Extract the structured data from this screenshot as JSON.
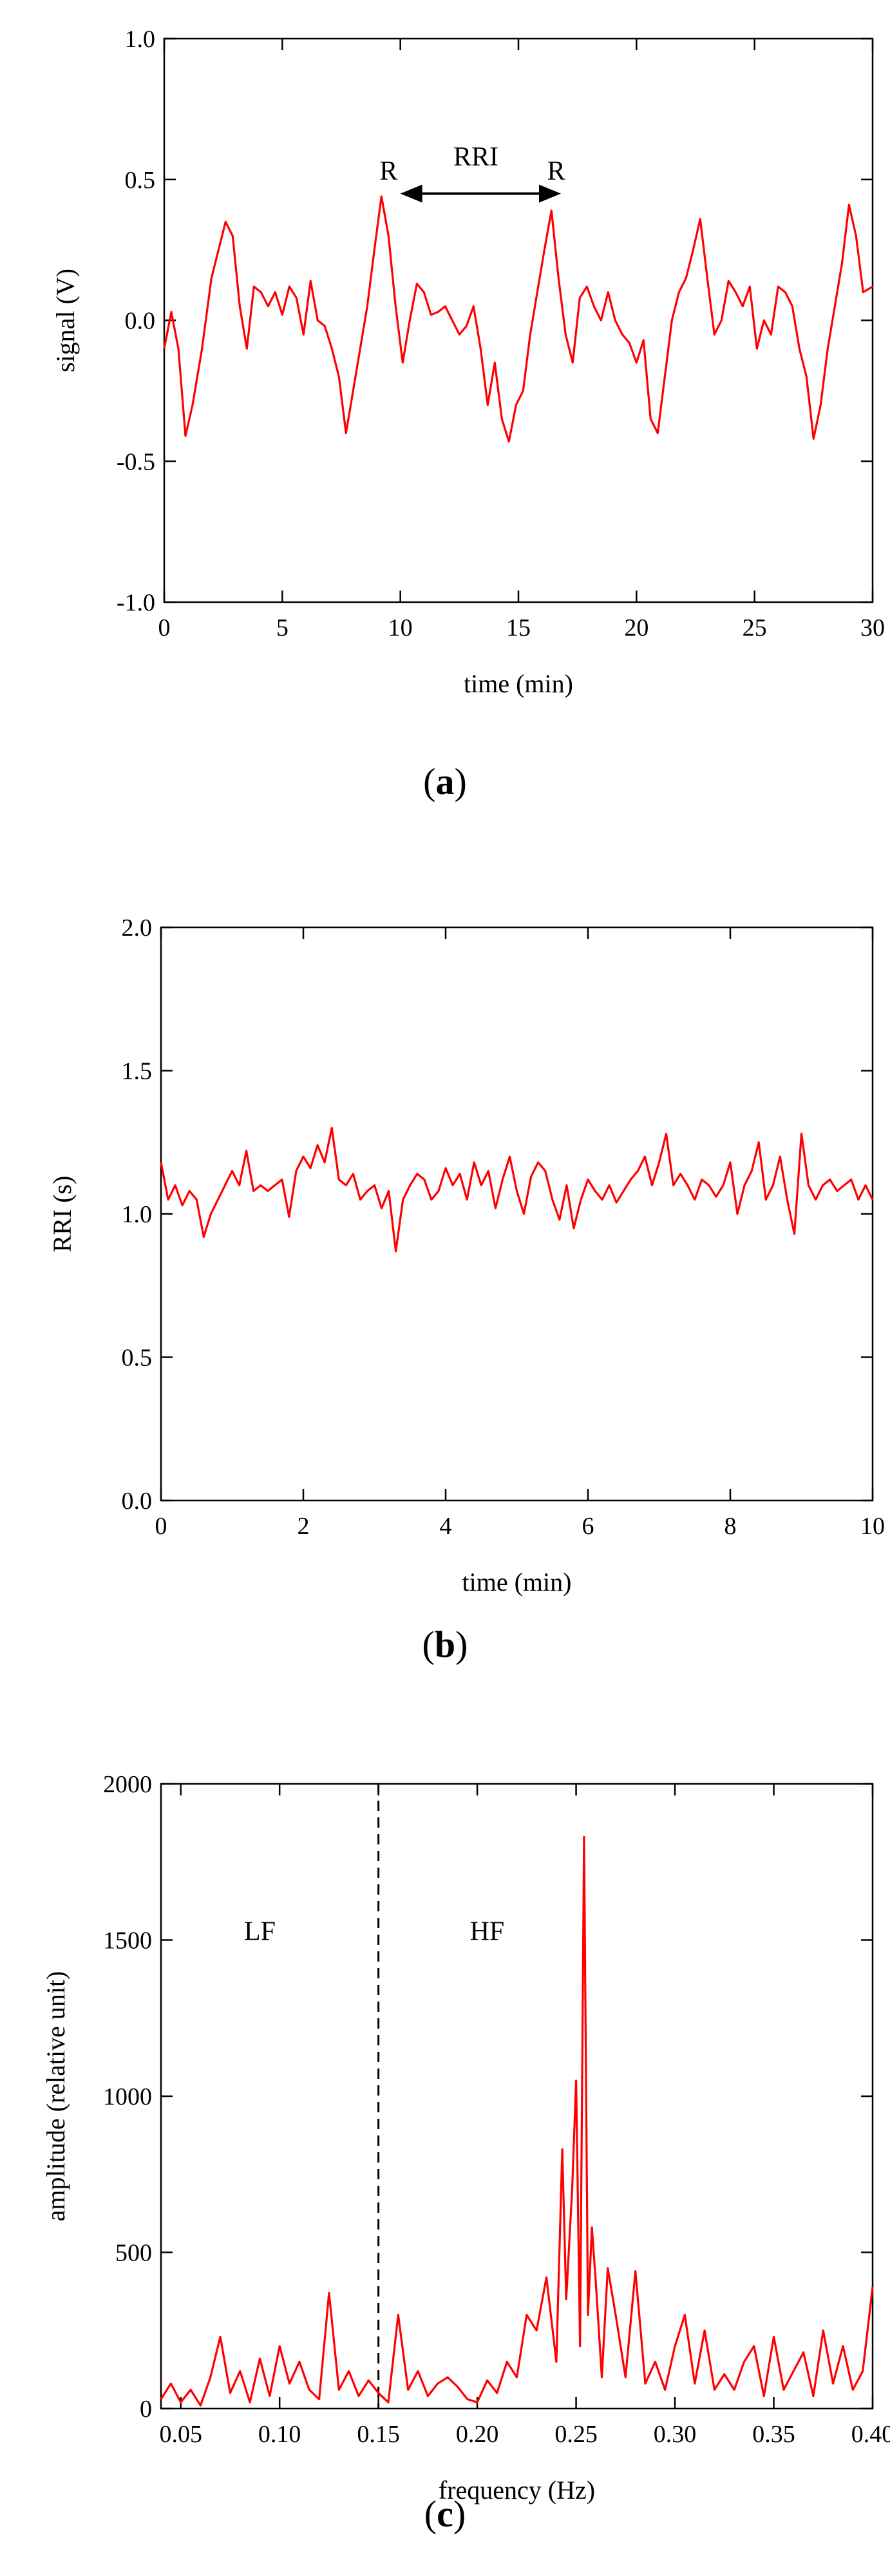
{
  "panels": {
    "a": {
      "caption_letter": "a"
    },
    "b": {
      "caption_letter": "b"
    },
    "c": {
      "caption_letter": "c"
    }
  },
  "chart_data": [
    {
      "id": "a",
      "type": "line",
      "xlabel": "time (min)",
      "ylabel": "signal (V)",
      "xlim": [
        0,
        30
      ],
      "ylim": [
        -1.0,
        1.0
      ],
      "xticks": [
        0,
        5,
        10,
        15,
        20,
        25,
        30
      ],
      "xtick_labels": [
        "0",
        "5",
        "10",
        "15",
        "20",
        "25",
        "30"
      ],
      "yticks": [
        -1.0,
        -0.5,
        0.0,
        0.5,
        1.0
      ],
      "ytick_labels": [
        "-1.0",
        "-0.5",
        "0.0",
        "0.5",
        "1.0"
      ],
      "line_color": "#ff0000",
      "annotations": [
        {
          "text": "R",
          "x": 9.5,
          "y": 0.5
        },
        {
          "text": "R",
          "x": 16.6,
          "y": 0.5
        },
        {
          "text": "RRI",
          "x": 13.2,
          "y": 0.55
        }
      ],
      "arrow": {
        "x_start": 10.0,
        "x_end": 16.8,
        "y": 0.45
      },
      "series": [
        {
          "x": [
            0,
            0.3,
            0.6,
            0.9,
            1.2,
            1.6,
            2.0,
            2.3,
            2.6,
            2.9,
            3.2,
            3.5,
            3.8,
            4.1,
            4.4,
            4.7,
            5.0,
            5.3,
            5.6,
            5.9,
            6.2,
            6.5,
            6.8,
            7.1,
            7.4,
            7.7,
            8.0,
            8.3,
            8.6,
            8.9,
            9.2,
            9.5,
            9.8,
            10.1,
            10.4,
            10.7,
            11.0,
            11.3,
            11.6,
            11.9,
            12.2,
            12.5,
            12.8,
            13.1,
            13.4,
            13.7,
            14.0,
            14.3,
            14.6,
            14.9,
            15.2,
            15.5,
            15.8,
            16.1,
            16.4,
            16.7,
            17.0,
            17.3,
            17.6,
            17.9,
            18.2,
            18.5,
            18.8,
            19.1,
            19.4,
            19.7,
            20.0,
            20.3,
            20.6,
            20.9,
            21.2,
            21.5,
            21.8,
            22.1,
            22.4,
            22.7,
            23.0,
            23.3,
            23.6,
            23.9,
            24.2,
            24.5,
            24.8,
            25.1,
            25.4,
            25.7,
            26.0,
            26.3,
            26.6,
            26.9,
            27.2,
            27.5,
            27.8,
            28.1,
            28.4,
            28.7,
            29.0,
            29.3,
            29.6,
            30.0
          ],
          "y": [
            -0.1,
            0.03,
            -0.1,
            -0.41,
            -0.3,
            -0.1,
            0.15,
            0.25,
            0.35,
            0.3,
            0.05,
            -0.1,
            0.12,
            0.1,
            0.05,
            0.1,
            0.02,
            0.12,
            0.08,
            -0.05,
            0.14,
            0.0,
            -0.02,
            -0.1,
            -0.2,
            -0.4,
            -0.25,
            -0.1,
            0.05,
            0.25,
            0.44,
            0.3,
            0.05,
            -0.15,
            0.0,
            0.13,
            0.1,
            0.02,
            0.03,
            0.05,
            0.0,
            -0.05,
            -0.02,
            0.05,
            -0.1,
            -0.3,
            -0.15,
            -0.35,
            -0.43,
            -0.3,
            -0.25,
            -0.05,
            0.1,
            0.25,
            0.39,
            0.15,
            -0.05,
            -0.15,
            0.08,
            0.12,
            0.05,
            0.0,
            0.1,
            0.0,
            -0.05,
            -0.08,
            -0.15,
            -0.07,
            -0.35,
            -0.4,
            -0.2,
            0.0,
            0.1,
            0.15,
            0.25,
            0.36,
            0.15,
            -0.05,
            0.0,
            0.14,
            0.1,
            0.05,
            0.12,
            -0.1,
            0.0,
            -0.05,
            0.12,
            0.1,
            0.05,
            -0.1,
            -0.2,
            -0.42,
            -0.3,
            -0.1,
            0.05,
            0.2,
            0.41,
            0.3,
            0.1,
            0.12
          ]
        }
      ]
    },
    {
      "id": "b",
      "type": "line",
      "xlabel": "time (min)",
      "ylabel": "RRI (s)",
      "xlim": [
        0,
        10
      ],
      "ylim": [
        0.0,
        2.0
      ],
      "xticks": [
        0,
        2,
        4,
        6,
        8,
        10
      ],
      "xtick_labels": [
        "0",
        "2",
        "4",
        "6",
        "8",
        "10"
      ],
      "yticks": [
        0.0,
        0.5,
        1.0,
        1.5,
        2.0
      ],
      "ytick_labels": [
        "0.0",
        "0.5",
        "1.0",
        "1.5",
        "2.0"
      ],
      "line_color": "#ff0000",
      "series": [
        {
          "x": [
            0,
            0.1,
            0.2,
            0.3,
            0.4,
            0.5,
            0.6,
            0.7,
            0.8,
            0.9,
            1.0,
            1.1,
            1.2,
            1.3,
            1.4,
            1.5,
            1.6,
            1.7,
            1.8,
            1.9,
            2.0,
            2.1,
            2.2,
            2.3,
            2.4,
            2.5,
            2.6,
            2.7,
            2.8,
            2.9,
            3.0,
            3.1,
            3.2,
            3.3,
            3.4,
            3.5,
            3.6,
            3.7,
            3.8,
            3.9,
            4.0,
            4.1,
            4.2,
            4.3,
            4.4,
            4.5,
            4.6,
            4.7,
            4.8,
            4.9,
            5.0,
            5.1,
            5.2,
            5.3,
            5.4,
            5.5,
            5.6,
            5.7,
            5.8,
            5.9,
            6.0,
            6.1,
            6.2,
            6.3,
            6.4,
            6.5,
            6.6,
            6.7,
            6.8,
            6.9,
            7.0,
            7.1,
            7.2,
            7.3,
            7.4,
            7.5,
            7.6,
            7.7,
            7.8,
            7.9,
            8.0,
            8.1,
            8.2,
            8.3,
            8.4,
            8.5,
            8.6,
            8.7,
            8.8,
            8.9,
            9.0,
            9.1,
            9.2,
            9.3,
            9.4,
            9.5,
            9.6,
            9.7,
            9.8,
            9.9,
            10.0
          ],
          "y": [
            1.18,
            1.05,
            1.1,
            1.03,
            1.08,
            1.05,
            0.92,
            1.0,
            1.05,
            1.1,
            1.15,
            1.1,
            1.22,
            1.08,
            1.1,
            1.08,
            1.1,
            1.12,
            0.99,
            1.15,
            1.2,
            1.16,
            1.24,
            1.18,
            1.3,
            1.12,
            1.1,
            1.14,
            1.05,
            1.08,
            1.1,
            1.02,
            1.08,
            0.87,
            1.05,
            1.1,
            1.14,
            1.12,
            1.05,
            1.08,
            1.16,
            1.1,
            1.14,
            1.05,
            1.18,
            1.1,
            1.15,
            1.02,
            1.12,
            1.2,
            1.08,
            1.0,
            1.13,
            1.18,
            1.15,
            1.05,
            0.98,
            1.1,
            0.95,
            1.05,
            1.12,
            1.08,
            1.05,
            1.1,
            1.04,
            1.08,
            1.12,
            1.15,
            1.2,
            1.1,
            1.18,
            1.28,
            1.1,
            1.14,
            1.1,
            1.05,
            1.12,
            1.1,
            1.06,
            1.1,
            1.18,
            1.0,
            1.1,
            1.15,
            1.25,
            1.05,
            1.1,
            1.2,
            1.05,
            0.93,
            1.28,
            1.1,
            1.05,
            1.1,
            1.12,
            1.08,
            1.1,
            1.12,
            1.05,
            1.1,
            1.05
          ]
        }
      ]
    },
    {
      "id": "c",
      "type": "line",
      "xlabel": "frequency (Hz)",
      "ylabel": "amplitude (relative unit)",
      "xlim": [
        0.04,
        0.4
      ],
      "ylim": [
        0,
        2000
      ],
      "xticks": [
        0.05,
        0.1,
        0.15,
        0.2,
        0.25,
        0.3,
        0.35,
        0.4
      ],
      "xtick_labels": [
        "0.05",
        "0.10",
        "0.15",
        "0.20",
        "0.25",
        "0.30",
        "0.35",
        "0.40"
      ],
      "yticks": [
        0,
        500,
        1000,
        1500,
        2000
      ],
      "ytick_labels": [
        "0",
        "500",
        "1000",
        "1500",
        "2000"
      ],
      "line_color": "#ff0000",
      "divider": {
        "x": 0.15,
        "style": "dashed"
      },
      "annotations": [
        {
          "text": "LF",
          "x": 0.09,
          "y": 1500
        },
        {
          "text": "HF",
          "x": 0.205,
          "y": 1500
        }
      ],
      "series": [
        {
          "x": [
            0.04,
            0.045,
            0.05,
            0.055,
            0.06,
            0.065,
            0.07,
            0.075,
            0.08,
            0.085,
            0.09,
            0.095,
            0.1,
            0.105,
            0.11,
            0.115,
            0.12,
            0.125,
            0.13,
            0.135,
            0.14,
            0.145,
            0.15,
            0.155,
            0.16,
            0.165,
            0.17,
            0.175,
            0.18,
            0.185,
            0.19,
            0.195,
            0.2,
            0.205,
            0.21,
            0.215,
            0.22,
            0.225,
            0.23,
            0.235,
            0.24,
            0.243,
            0.245,
            0.248,
            0.25,
            0.252,
            0.254,
            0.256,
            0.258,
            0.26,
            0.263,
            0.266,
            0.27,
            0.275,
            0.28,
            0.285,
            0.29,
            0.295,
            0.3,
            0.305,
            0.31,
            0.315,
            0.32,
            0.325,
            0.33,
            0.335,
            0.34,
            0.345,
            0.35,
            0.355,
            0.36,
            0.365,
            0.37,
            0.375,
            0.38,
            0.385,
            0.39,
            0.395,
            0.4
          ],
          "y": [
            30,
            80,
            20,
            60,
            10,
            100,
            230,
            50,
            120,
            20,
            160,
            40,
            200,
            80,
            150,
            60,
            30,
            370,
            60,
            120,
            40,
            90,
            50,
            20,
            300,
            60,
            120,
            40,
            80,
            100,
            70,
            30,
            20,
            90,
            50,
            150,
            100,
            300,
            250,
            420,
            150,
            830,
            350,
            700,
            1050,
            200,
            1830,
            300,
            580,
            400,
            100,
            450,
            300,
            100,
            440,
            80,
            150,
            60,
            200,
            300,
            80,
            250,
            60,
            110,
            60,
            150,
            200,
            40,
            230,
            60,
            120,
            180,
            40,
            250,
            80,
            200,
            60,
            120,
            390
          ]
        }
      ]
    }
  ]
}
